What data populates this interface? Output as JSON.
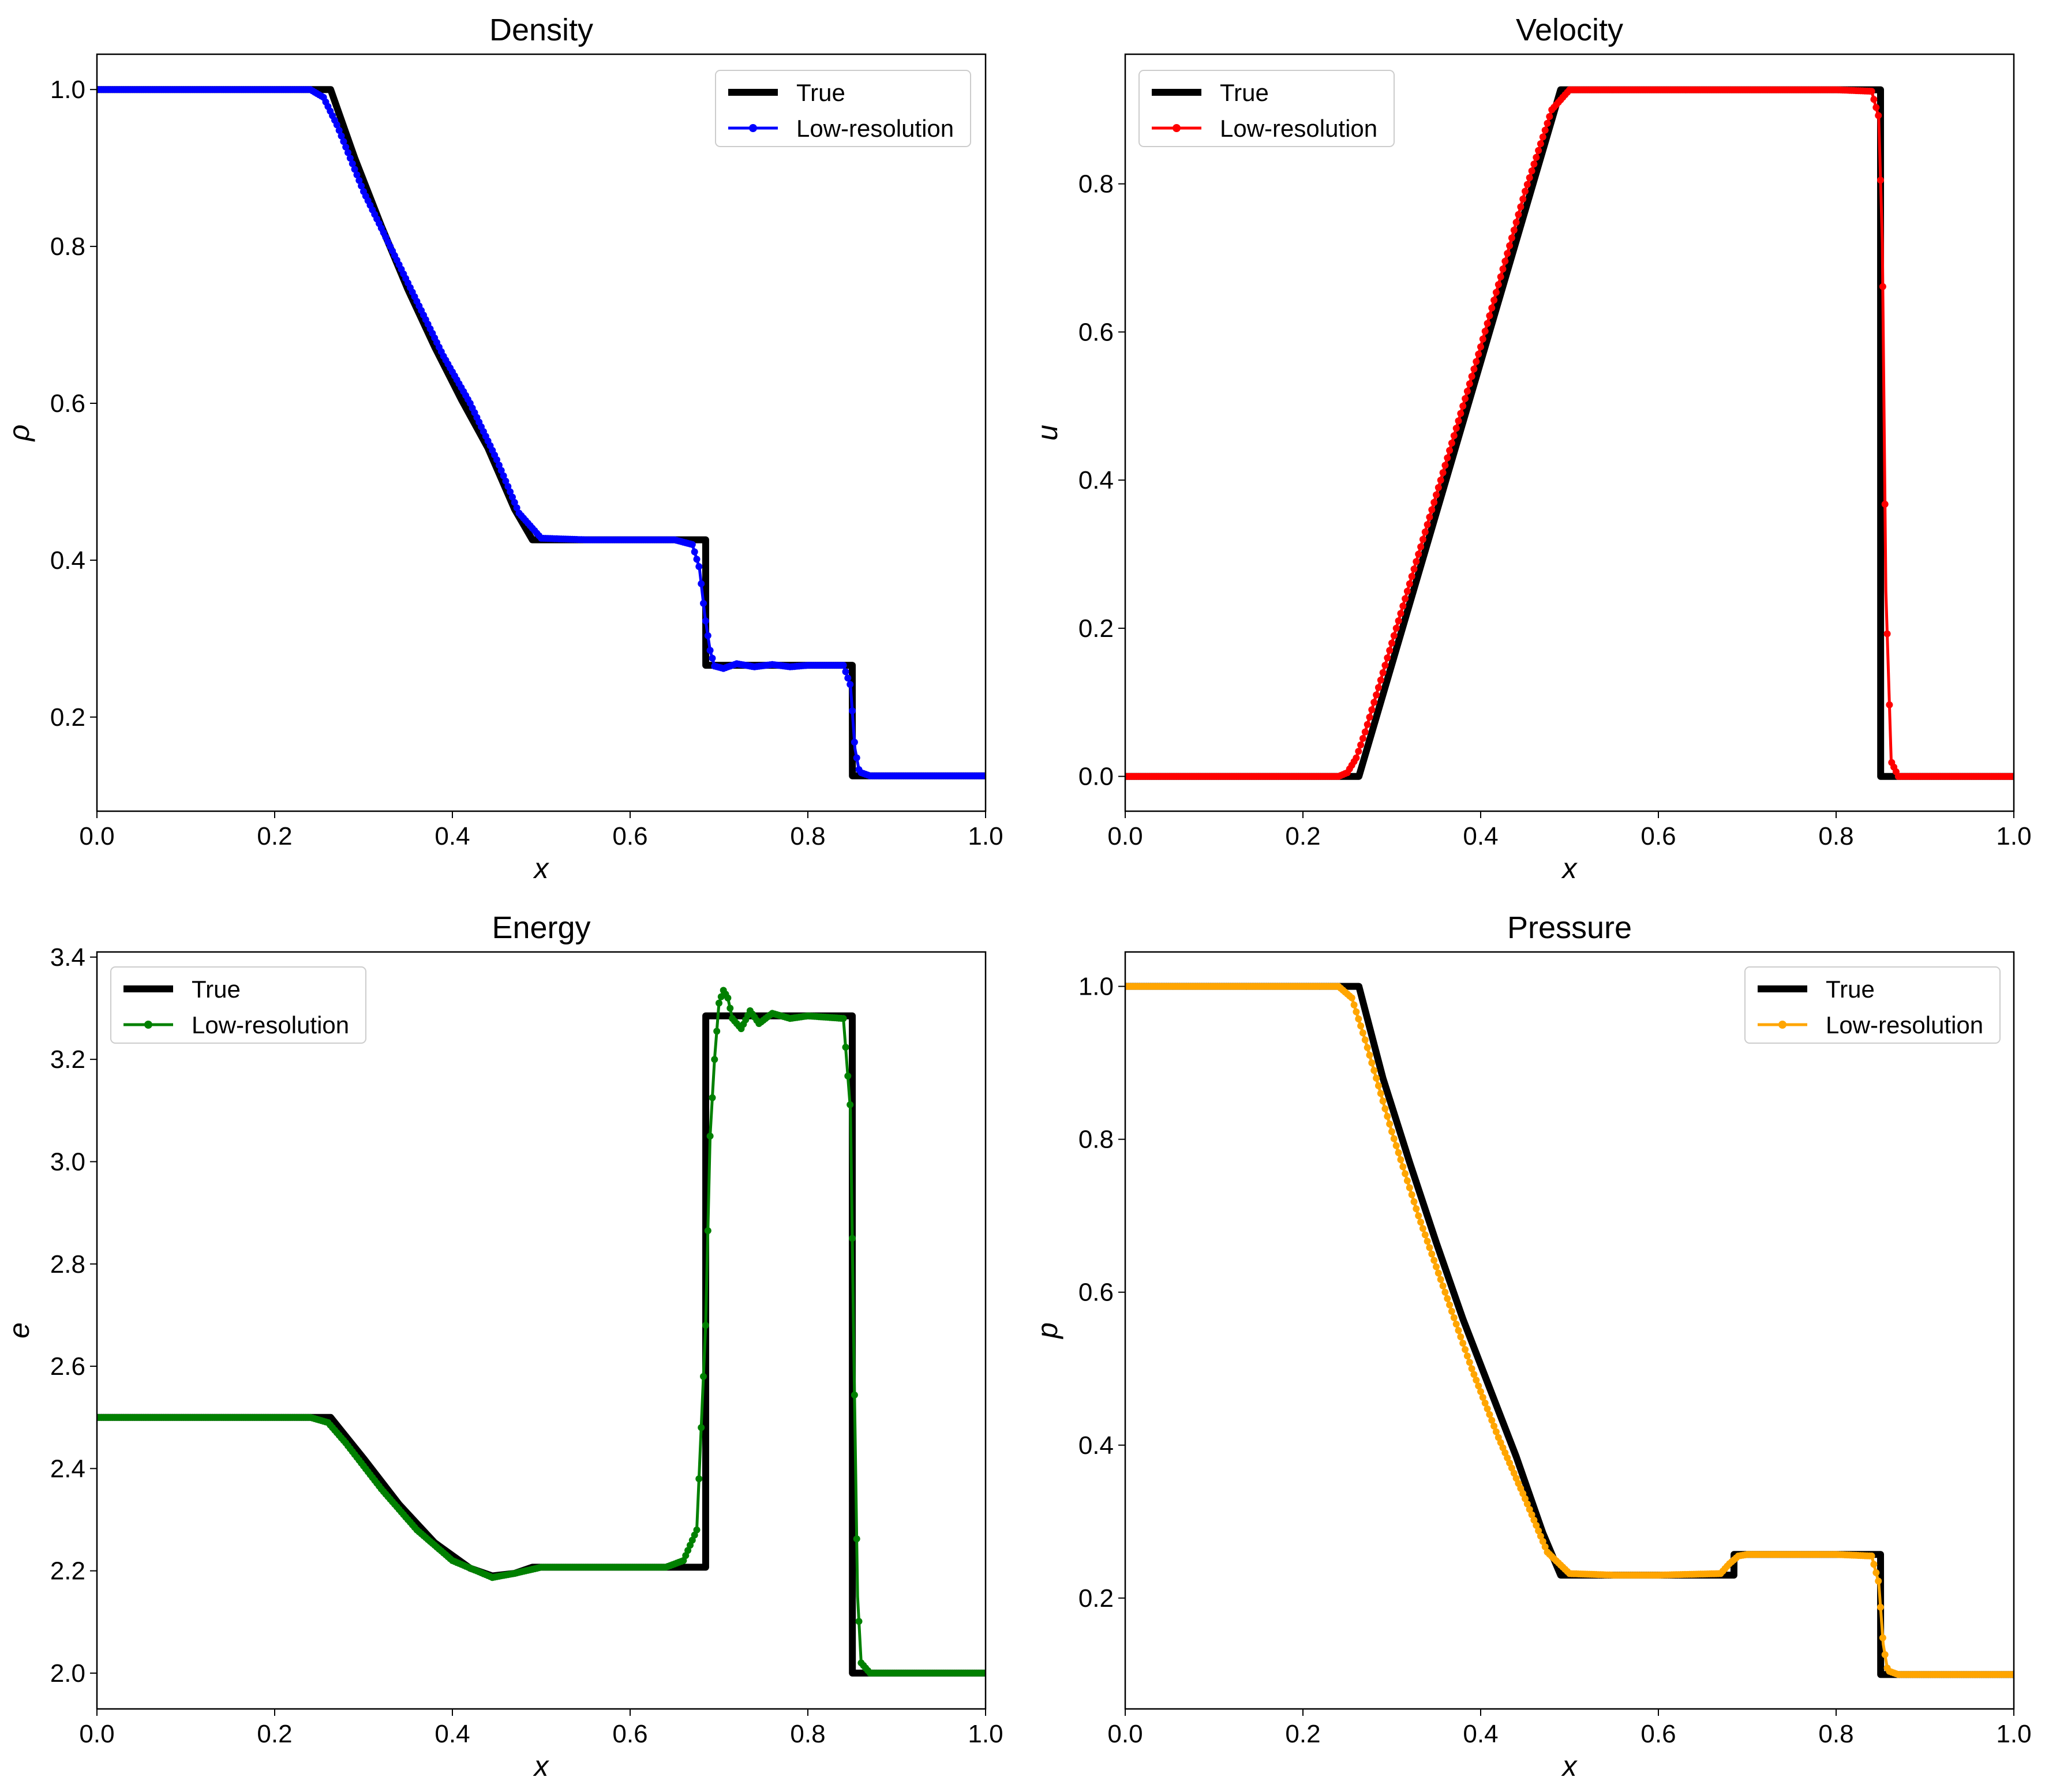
{
  "chart_data": [
    {
      "type": "line",
      "title": "Density",
      "xlabel": "x",
      "ylabel": "ρ",
      "xlim": [
        0.0,
        1.0
      ],
      "ylim": [
        0.08,
        1.045
      ],
      "xticks": [
        "0.0",
        "0.2",
        "0.4",
        "0.6",
        "0.8",
        "1.0"
      ],
      "yticks": [
        0.2,
        0.4,
        0.6,
        0.8,
        1.0
      ],
      "ytick_labels": [
        "0.2",
        "0.4",
        "0.6",
        "0.8",
        "1.0"
      ],
      "legend_position": "top-right",
      "legend": [
        "True",
        "Low-resolution"
      ],
      "series": [
        {
          "name": "True",
          "color": "#000000",
          "x": [
            0.0,
            0.263,
            0.29,
            0.32,
            0.35,
            0.38,
            0.41,
            0.44,
            0.47,
            0.49,
            0.685,
            0.6851,
            0.85,
            0.8501,
            1.0
          ],
          "y": [
            1.0,
            1.0,
            0.913,
            0.826,
            0.745,
            0.672,
            0.605,
            0.543,
            0.465,
            0.426,
            0.426,
            0.266,
            0.266,
            0.125,
            0.125
          ]
        },
        {
          "name": "Low-resolution",
          "color": "#0000ff",
          "x": [
            0.0,
            0.24,
            0.255,
            0.27,
            0.3,
            0.33,
            0.36,
            0.39,
            0.42,
            0.45,
            0.475,
            0.5,
            0.55,
            0.6,
            0.65,
            0.67,
            0.678,
            0.684,
            0.69,
            0.695,
            0.705,
            0.72,
            0.74,
            0.76,
            0.78,
            0.8,
            0.84,
            0.848,
            0.853,
            0.858,
            0.87,
            1.0
          ],
          "y": [
            1.0,
            1.0,
            0.99,
            0.955,
            0.87,
            0.8,
            0.73,
            0.66,
            0.6,
            0.528,
            0.46,
            0.428,
            0.426,
            0.426,
            0.426,
            0.42,
            0.39,
            0.33,
            0.285,
            0.265,
            0.262,
            0.268,
            0.264,
            0.267,
            0.264,
            0.266,
            0.266,
            0.24,
            0.16,
            0.13,
            0.125,
            0.125
          ]
        }
      ]
    },
    {
      "type": "line",
      "title": "Velocity",
      "xlabel": "x",
      "ylabel": "u",
      "xlim": [
        0.0,
        1.0
      ],
      "ylim": [
        -0.047,
        0.975
      ],
      "xticks": [
        "0.0",
        "0.2",
        "0.4",
        "0.6",
        "0.8",
        "1.0"
      ],
      "yticks": [
        0.0,
        0.2,
        0.4,
        0.6,
        0.8
      ],
      "ytick_labels": [
        "0.0",
        "0.2",
        "0.4",
        "0.6",
        "0.8"
      ],
      "legend_position": "top-left",
      "legend": [
        "True",
        "Low-resolution"
      ],
      "series": [
        {
          "name": "True",
          "color": "#000000",
          "x": [
            0.0,
            0.263,
            0.49,
            0.85,
            0.8501,
            1.0
          ],
          "y": [
            0.0,
            0.0,
            0.927,
            0.927,
            0.0,
            0.0
          ]
        },
        {
          "name": "Low-resolution",
          "color": "#ff0000",
          "x": [
            0.0,
            0.24,
            0.25,
            0.26,
            0.27,
            0.3,
            0.35,
            0.4,
            0.45,
            0.48,
            0.5,
            0.6,
            0.7,
            0.8,
            0.84,
            0.848,
            0.852,
            0.856,
            0.862,
            0.87,
            1.0
          ],
          "y": [
            0.0,
            0.0,
            0.005,
            0.025,
            0.06,
            0.18,
            0.38,
            0.58,
            0.79,
            0.9,
            0.927,
            0.927,
            0.927,
            0.927,
            0.925,
            0.89,
            0.72,
            0.25,
            0.02,
            0.0,
            0.0
          ]
        }
      ]
    },
    {
      "type": "line",
      "title": "Energy",
      "xlabel": "x",
      "ylabel": "e",
      "xlim": [
        0.0,
        1.0
      ],
      "ylim": [
        1.93,
        3.41
      ],
      "xticks": [
        "0.0",
        "0.2",
        "0.4",
        "0.6",
        "0.8",
        "1.0"
      ],
      "yticks": [
        2.0,
        2.2,
        2.4,
        2.6,
        2.8,
        3.0,
        3.2,
        3.4
      ],
      "ytick_labels": [
        "2.0",
        "2.2",
        "2.4",
        "2.6",
        "2.8",
        "3.0",
        "3.2",
        "3.4"
      ],
      "legend_position": "top-left",
      "legend": [
        "True",
        "Low-resolution"
      ],
      "series": [
        {
          "name": "True",
          "color": "#000000",
          "x": [
            0.0,
            0.263,
            0.3,
            0.34,
            0.38,
            0.42,
            0.445,
            0.47,
            0.49,
            0.685,
            0.6851,
            0.85,
            0.8501,
            1.0
          ],
          "y": [
            2.5,
            2.5,
            2.42,
            2.33,
            2.255,
            2.205,
            2.19,
            2.195,
            2.207,
            2.207,
            3.285,
            3.285,
            2.0,
            2.0
          ]
        },
        {
          "name": "Low-resolution",
          "color": "#008000",
          "x": [
            0.0,
            0.24,
            0.26,
            0.28,
            0.32,
            0.36,
            0.4,
            0.445,
            0.47,
            0.5,
            0.55,
            0.6,
            0.64,
            0.66,
            0.675,
            0.685,
            0.69,
            0.695,
            0.7,
            0.705,
            0.71,
            0.715,
            0.725,
            0.735,
            0.745,
            0.76,
            0.78,
            0.8,
            0.84,
            0.848,
            0.852,
            0.856,
            0.86,
            0.87,
            1.0
          ],
          "y": [
            2.5,
            2.5,
            2.49,
            2.45,
            2.36,
            2.28,
            2.22,
            2.187,
            2.195,
            2.207,
            2.207,
            2.207,
            2.207,
            2.22,
            2.28,
            2.68,
            3.05,
            3.2,
            3.31,
            3.335,
            3.32,
            3.28,
            3.26,
            3.295,
            3.27,
            3.29,
            3.28,
            3.285,
            3.28,
            3.1,
            2.6,
            2.15,
            2.02,
            2.0,
            2.0
          ]
        }
      ]
    },
    {
      "type": "line",
      "title": "Pressure",
      "xlabel": "x",
      "ylabel": "p",
      "xlim": [
        0.0,
        1.0
      ],
      "ylim": [
        0.055,
        1.045
      ],
      "xticks": [
        "0.0",
        "0.2",
        "0.4",
        "0.6",
        "0.8",
        "1.0"
      ],
      "yticks": [
        0.2,
        0.4,
        0.6,
        0.8,
        1.0
      ],
      "ytick_labels": [
        "0.2",
        "0.4",
        "0.6",
        "0.8",
        "1.0"
      ],
      "legend_position": "top-right",
      "legend": [
        "True",
        "Low-resolution"
      ],
      "series": [
        {
          "name": "True",
          "color": "#000000",
          "x": [
            0.0,
            0.263,
            0.29,
            0.32,
            0.35,
            0.38,
            0.41,
            0.44,
            0.47,
            0.49,
            0.685,
            0.6851,
            0.85,
            0.8501,
            1.0
          ],
          "y": [
            1.0,
            1.0,
            0.88,
            0.77,
            0.665,
            0.565,
            0.475,
            0.385,
            0.285,
            0.23,
            0.23,
            0.257,
            0.257,
            0.1,
            0.1
          ]
        },
        {
          "name": "Low-resolution",
          "color": "#ffa500",
          "x": [
            0.0,
            0.24,
            0.255,
            0.27,
            0.3,
            0.33,
            0.36,
            0.39,
            0.42,
            0.45,
            0.475,
            0.5,
            0.55,
            0.6,
            0.67,
            0.68,
            0.69,
            0.7,
            0.75,
            0.8,
            0.84,
            0.848,
            0.853,
            0.858,
            0.87,
            1.0
          ],
          "y": [
            1.0,
            1.0,
            0.985,
            0.93,
            0.81,
            0.7,
            0.6,
            0.5,
            0.41,
            0.33,
            0.26,
            0.232,
            0.23,
            0.23,
            0.232,
            0.245,
            0.255,
            0.257,
            0.257,
            0.257,
            0.255,
            0.22,
            0.14,
            0.105,
            0.1,
            0.1
          ]
        }
      ]
    }
  ]
}
